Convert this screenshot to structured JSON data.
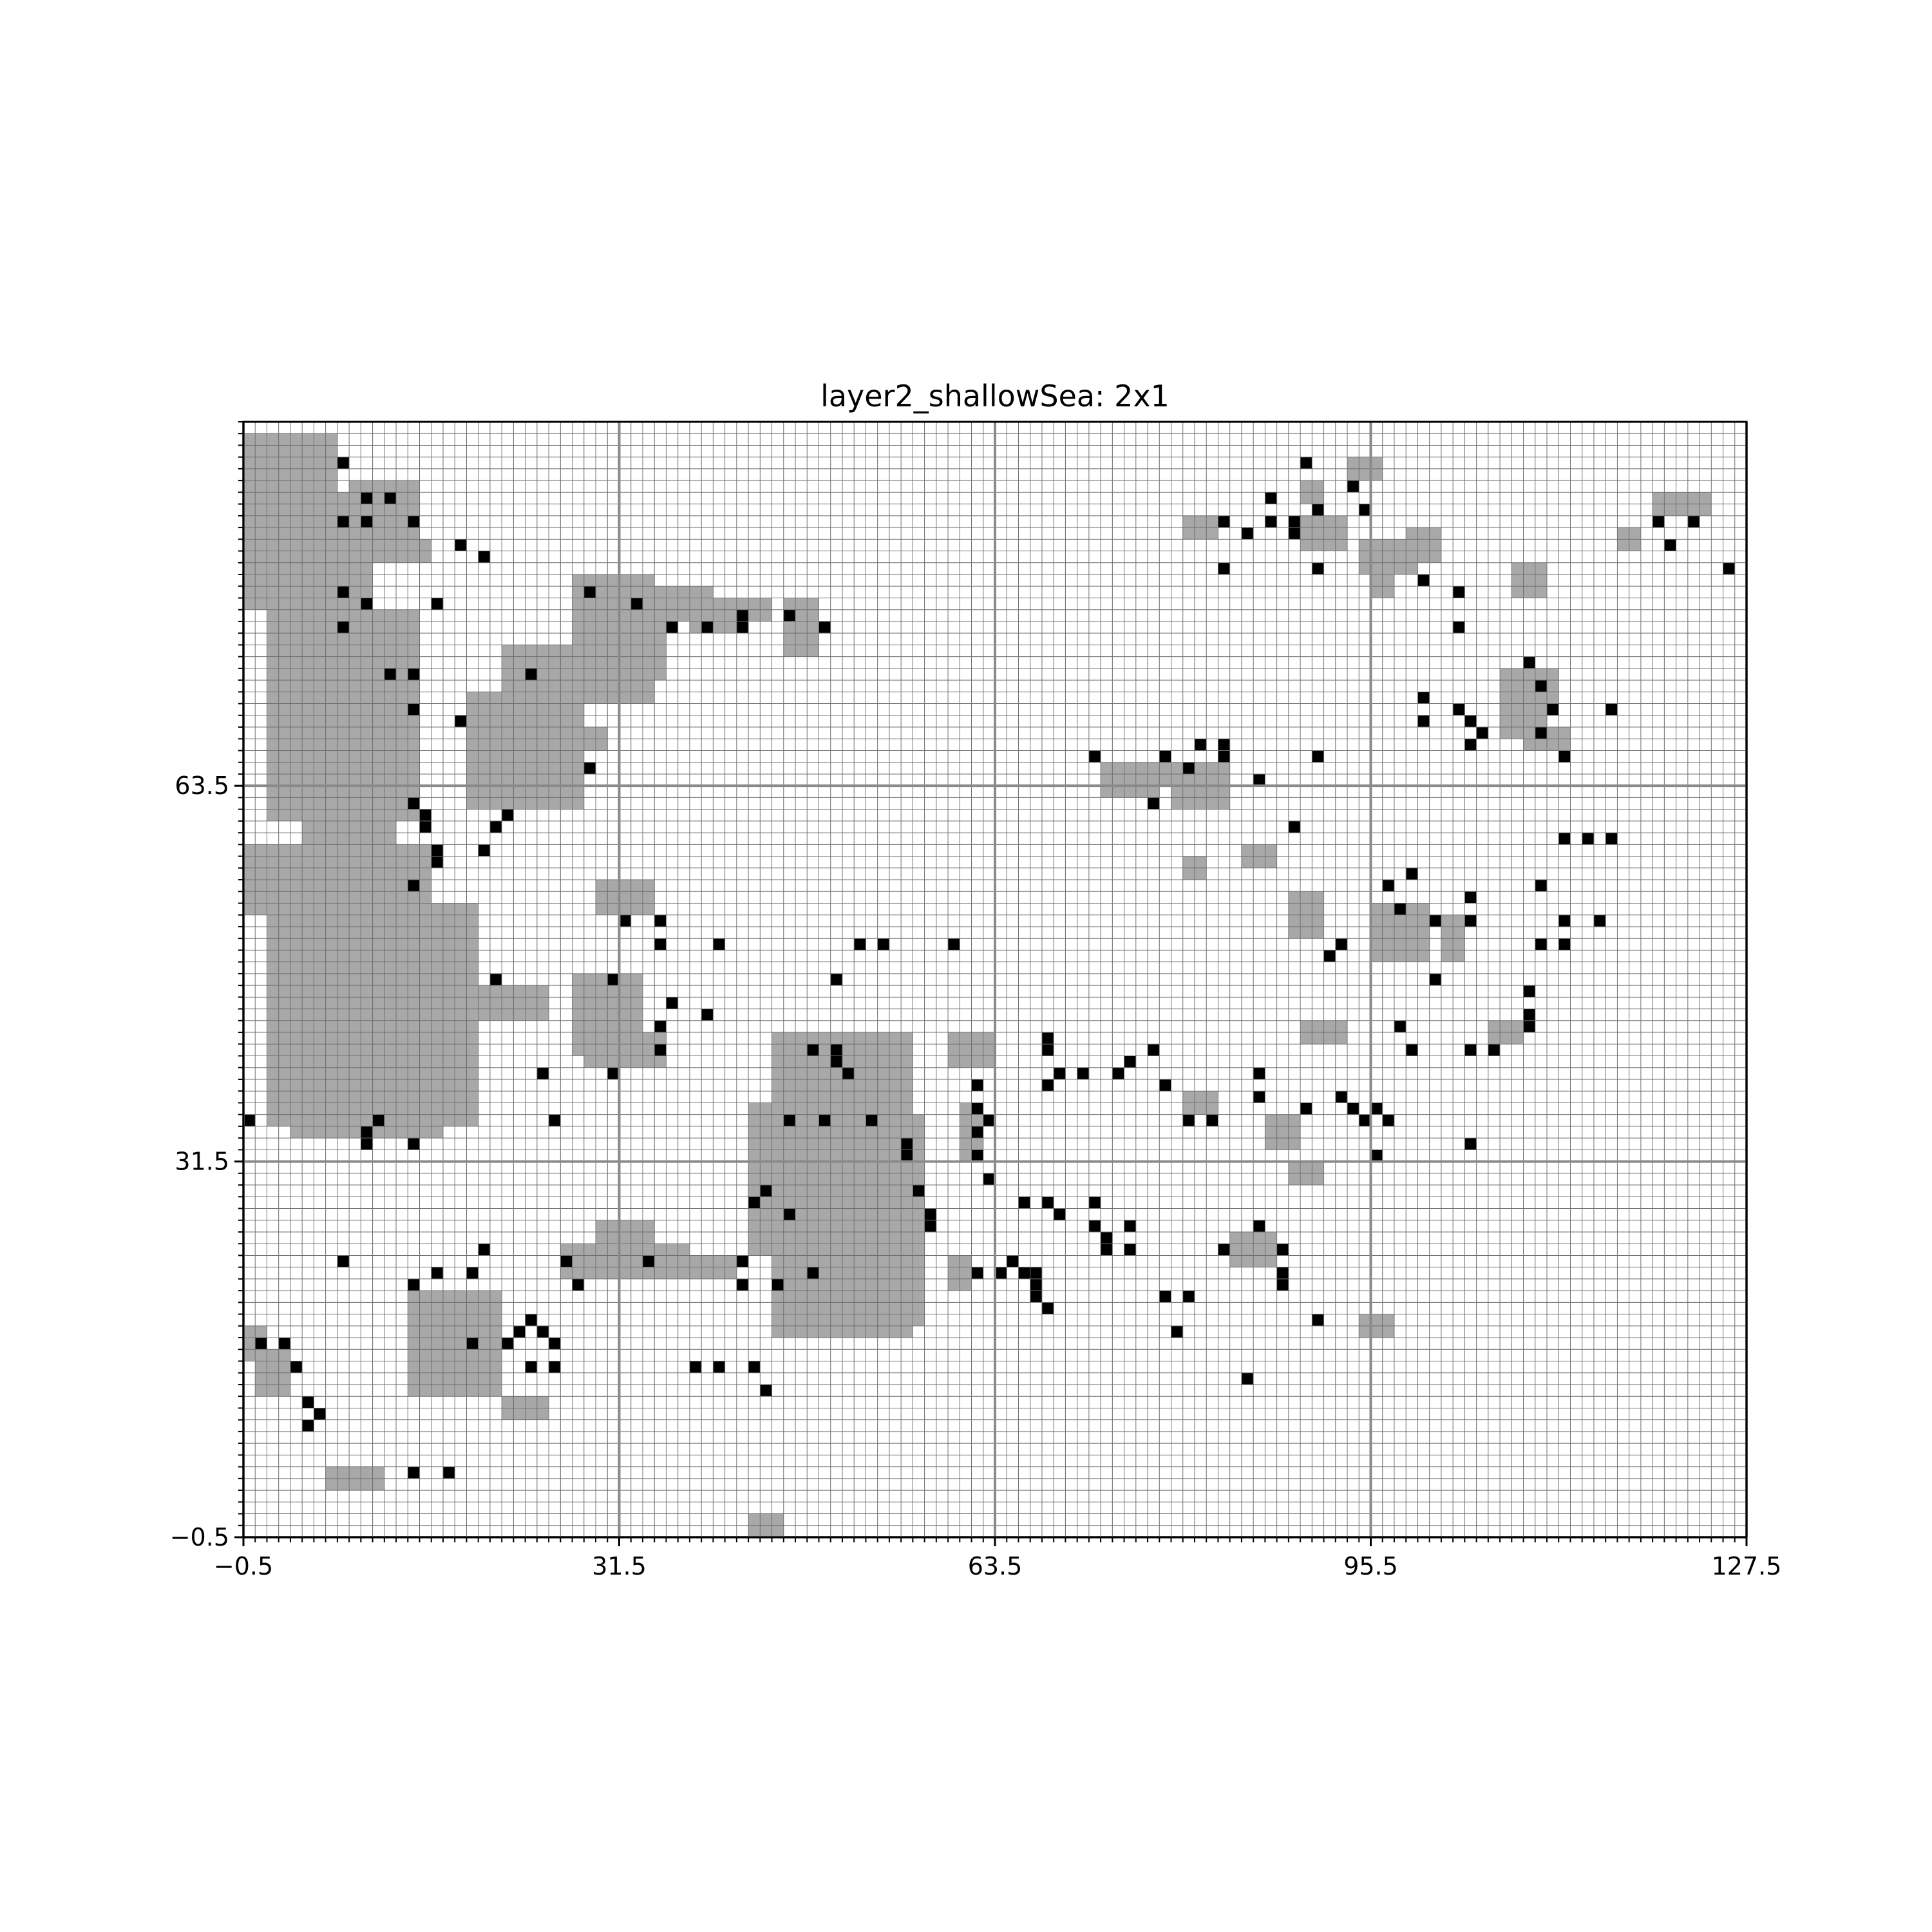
{
  "chart_data": {
    "type": "heatmap",
    "title": "layer2_shallowSea: 2x1",
    "xlabel": "",
    "ylabel": "",
    "xlim": [
      -0.5,
      127.5
    ],
    "ylim": [
      -0.5,
      94.5
    ],
    "x_ticks": [
      -0.5,
      31.5,
      63.5,
      95.5,
      127.5
    ],
    "x_tick_labels": [
      "−0.5",
      "31.5",
      "63.5",
      "95.5",
      "127.5"
    ],
    "y_ticks": [
      -0.5,
      31.5,
      63.5
    ],
    "y_tick_labels": [
      "−0.5",
      "31.5",
      "63.5"
    ],
    "fine_grid": true,
    "coarse_grid_every": 32,
    "cell_colors": {
      "empty": "#ffffff",
      "shallow": "#a8a8a8",
      "marker": "#000000"
    },
    "grid_colors": {
      "fine": "#6e6e6e",
      "coarse": "#8a8a8a"
    },
    "shallow_rects": [
      [
        0,
        79,
        7,
        93
      ],
      [
        8,
        74,
        10,
        88
      ],
      [
        9,
        84,
        14,
        89
      ],
      [
        11,
        83,
        15,
        84
      ],
      [
        2,
        61,
        14,
        78
      ],
      [
        5,
        58,
        12,
        62
      ],
      [
        0,
        53,
        15,
        58
      ],
      [
        2,
        35,
        19,
        53
      ],
      [
        13,
        35,
        16,
        50
      ],
      [
        16,
        44,
        19,
        50
      ],
      [
        16,
        44,
        25,
        46
      ],
      [
        4,
        34,
        16,
        35
      ],
      [
        22,
        68,
        28,
        75
      ],
      [
        19,
        62,
        28,
        71
      ],
      [
        28,
        71,
        34,
        81
      ],
      [
        28,
        73,
        35,
        78
      ],
      [
        31,
        80,
        33,
        81
      ],
      [
        35,
        78,
        39,
        80
      ],
      [
        35,
        78,
        44,
        79
      ],
      [
        38,
        77,
        42,
        78
      ],
      [
        46,
        75,
        48,
        79
      ],
      [
        30,
        53,
        34,
        55
      ],
      [
        28,
        41,
        33,
        47
      ],
      [
        29,
        40,
        35,
        42
      ],
      [
        45,
        17,
        56,
        42
      ],
      [
        53,
        18,
        57,
        35
      ],
      [
        43,
        24,
        46,
        36
      ],
      [
        45,
        21,
        48,
        27
      ],
      [
        36,
        22,
        41,
        23
      ],
      [
        27,
        22,
        37,
        24
      ],
      [
        30,
        23,
        34,
        26
      ],
      [
        14,
        12,
        21,
        20
      ],
      [
        15,
        17,
        16,
        19
      ],
      [
        18,
        13,
        20,
        15
      ],
      [
        1,
        12,
        3,
        15
      ],
      [
        0,
        15,
        1,
        17
      ],
      [
        22,
        10,
        25,
        11
      ],
      [
        7,
        4,
        11,
        5
      ],
      [
        43,
        -1,
        45,
        1
      ],
      [
        60,
        40,
        63,
        42
      ],
      [
        61,
        32,
        62,
        36
      ],
      [
        60,
        21,
        61,
        23
      ],
      [
        73,
        64,
        81,
        65
      ],
      [
        79,
        62,
        83,
        65
      ],
      [
        73,
        63,
        77,
        64
      ],
      [
        80,
        56,
        81,
        57
      ],
      [
        85,
        57,
        87,
        58
      ],
      [
        84,
        23,
        87,
        25
      ],
      [
        87,
        33,
        89,
        35
      ],
      [
        89,
        30,
        91,
        31
      ],
      [
        80,
        36,
        82,
        37
      ],
      [
        95,
        17,
        97,
        18
      ],
      [
        80,
        85,
        82,
        86
      ],
      [
        90,
        84,
        93,
        86
      ],
      [
        90,
        88,
        91,
        89
      ],
      [
        94,
        90,
        96,
        91
      ],
      [
        95,
        82,
        99,
        84
      ],
      [
        99,
        83,
        101,
        85
      ],
      [
        96,
        80,
        97,
        82
      ],
      [
        108,
        80,
        110,
        82
      ],
      [
        107,
        68,
        110,
        70
      ],
      [
        107,
        71,
        111,
        73
      ],
      [
        109,
        67,
        112,
        68
      ],
      [
        120,
        87,
        124,
        88
      ],
      [
        117,
        84,
        118,
        85
      ],
      [
        89,
        51,
        91,
        54
      ],
      [
        96,
        49,
        100,
        53
      ],
      [
        102,
        49,
        103,
        52
      ],
      [
        90,
        42,
        93,
        43
      ],
      [
        106,
        42,
        108,
        43
      ],
      [
        28,
        67,
        30,
        68
      ]
    ],
    "marker_cells": [
      [
        8,
        91
      ],
      [
        10,
        88
      ],
      [
        12,
        88
      ],
      [
        8,
        86
      ],
      [
        10,
        86
      ],
      [
        14,
        86
      ],
      [
        18,
        84
      ],
      [
        20,
        83
      ],
      [
        8,
        80
      ],
      [
        10,
        79
      ],
      [
        16,
        79
      ],
      [
        8,
        77
      ],
      [
        12,
        73
      ],
      [
        14,
        73
      ],
      [
        14,
        70
      ],
      [
        18,
        69
      ],
      [
        24,
        73
      ],
      [
        14,
        62
      ],
      [
        15,
        61
      ],
      [
        15,
        60
      ],
      [
        16,
        58
      ],
      [
        16,
        57
      ],
      [
        14,
        55
      ],
      [
        22,
        61
      ],
      [
        21,
        60
      ],
      [
        20,
        58
      ],
      [
        29,
        80
      ],
      [
        33,
        79
      ],
      [
        36,
        77
      ],
      [
        39,
        77
      ],
      [
        42,
        77
      ],
      [
        42,
        78
      ],
      [
        46,
        78
      ],
      [
        49,
        77
      ],
      [
        29,
        65
      ],
      [
        32,
        52
      ],
      [
        35,
        52
      ],
      [
        35,
        50
      ],
      [
        40,
        50
      ],
      [
        36,
        45
      ],
      [
        35,
        43
      ],
      [
        35,
        41
      ],
      [
        39,
        44
      ],
      [
        25,
        39
      ],
      [
        26,
        35
      ],
      [
        31,
        47
      ],
      [
        31,
        39
      ],
      [
        21,
        47
      ],
      [
        0,
        35
      ],
      [
        11,
        35
      ],
      [
        10,
        34
      ],
      [
        10,
        33
      ],
      [
        14,
        33
      ],
      [
        48,
        41
      ],
      [
        50,
        41
      ],
      [
        50,
        40
      ],
      [
        51,
        39
      ],
      [
        46,
        35
      ],
      [
        49,
        35
      ],
      [
        53,
        35
      ],
      [
        56,
        33
      ],
      [
        56,
        32
      ],
      [
        44,
        29
      ],
      [
        43,
        28
      ],
      [
        46,
        27
      ],
      [
        57,
        29
      ],
      [
        58,
        27
      ],
      [
        58,
        26
      ],
      [
        62,
        32
      ],
      [
        63,
        30
      ],
      [
        8,
        23
      ],
      [
        20,
        24
      ],
      [
        27,
        23
      ],
      [
        28,
        21
      ],
      [
        34,
        23
      ],
      [
        42,
        21
      ],
      [
        42,
        23
      ],
      [
        45,
        21
      ],
      [
        48,
        22
      ],
      [
        16,
        22
      ],
      [
        19,
        22
      ],
      [
        14,
        21
      ],
      [
        24,
        18
      ],
      [
        23,
        17
      ],
      [
        25,
        17
      ],
      [
        19,
        16
      ],
      [
        22,
        16
      ],
      [
        26,
        16
      ],
      [
        24,
        14
      ],
      [
        26,
        14
      ],
      [
        1,
        16
      ],
      [
        3,
        16
      ],
      [
        4,
        14
      ],
      [
        5,
        11
      ],
      [
        6,
        10
      ],
      [
        5,
        9
      ],
      [
        14,
        5
      ],
      [
        17,
        5
      ],
      [
        38,
        14
      ],
      [
        40,
        14
      ],
      [
        43,
        14
      ],
      [
        44,
        12
      ],
      [
        52,
        50
      ],
      [
        54,
        50
      ],
      [
        50,
        47
      ],
      [
        60,
        50
      ],
      [
        68,
        42
      ],
      [
        68,
        41
      ],
      [
        69,
        39
      ],
      [
        71,
        39
      ],
      [
        68,
        38
      ],
      [
        62,
        38
      ],
      [
        62,
        36
      ],
      [
        62,
        34
      ],
      [
        63,
        35
      ],
      [
        75,
        40
      ],
      [
        77,
        41
      ],
      [
        74,
        39
      ],
      [
        78,
        38
      ],
      [
        80,
        35
      ],
      [
        82,
        35
      ],
      [
        86,
        39
      ],
      [
        86,
        37
      ],
      [
        90,
        36
      ],
      [
        94,
        36
      ],
      [
        96,
        36
      ],
      [
        96,
        32
      ],
      [
        66,
        28
      ],
      [
        68,
        28
      ],
      [
        69,
        27
      ],
      [
        72,
        28
      ],
      [
        72,
        26
      ],
      [
        73,
        25
      ],
      [
        73,
        24
      ],
      [
        75,
        26
      ],
      [
        75,
        24
      ],
      [
        66,
        22
      ],
      [
        67,
        22
      ],
      [
        67,
        21
      ],
      [
        67,
        20
      ],
      [
        68,
        19
      ],
      [
        64,
        22
      ],
      [
        65,
        23
      ],
      [
        62,
        22
      ],
      [
        78,
        20
      ],
      [
        80,
        20
      ],
      [
        83,
        24
      ],
      [
        86,
        26
      ],
      [
        88,
        24
      ],
      [
        88,
        22
      ],
      [
        88,
        21
      ],
      [
        91,
        18
      ],
      [
        85,
        13
      ],
      [
        72,
        66
      ],
      [
        78,
        66
      ],
      [
        80,
        65
      ],
      [
        81,
        67
      ],
      [
        83,
        66
      ],
      [
        83,
        67
      ],
      [
        77,
        62
      ],
      [
        86,
        64
      ],
      [
        89,
        60
      ],
      [
        91,
        66
      ],
      [
        87,
        88
      ],
      [
        87,
        86
      ],
      [
        89,
        86
      ],
      [
        89,
        85
      ],
      [
        91,
        87
      ],
      [
        83,
        86
      ],
      [
        85,
        85
      ],
      [
        90,
        91
      ],
      [
        95,
        87
      ],
      [
        94,
        89
      ],
      [
        83,
        82
      ],
      [
        91,
        82
      ],
      [
        100,
        81
      ],
      [
        103,
        77
      ],
      [
        103,
        80
      ],
      [
        100,
        71
      ],
      [
        100,
        69
      ],
      [
        103,
        70
      ],
      [
        104,
        69
      ],
      [
        105,
        68
      ],
      [
        104,
        67
      ],
      [
        109,
        74
      ],
      [
        110,
        72
      ],
      [
        111,
        70
      ],
      [
        110,
        68
      ],
      [
        112,
        66
      ],
      [
        116,
        70
      ],
      [
        120,
        86
      ],
      [
        121,
        84
      ],
      [
        123,
        86
      ],
      [
        126,
        82
      ],
      [
        99,
        56
      ],
      [
        97,
        55
      ],
      [
        98,
        53
      ],
      [
        101,
        52
      ],
      [
        104,
        52
      ],
      [
        104,
        54
      ],
      [
        110,
        55
      ],
      [
        112,
        59
      ],
      [
        114,
        59
      ],
      [
        116,
        59
      ],
      [
        112,
        52
      ],
      [
        110,
        50
      ],
      [
        112,
        50
      ],
      [
        115,
        52
      ],
      [
        101,
        47
      ],
      [
        98,
        43
      ],
      [
        109,
        46
      ],
      [
        109,
        44
      ],
      [
        104,
        41
      ],
      [
        106,
        41
      ],
      [
        109,
        43
      ],
      [
        99,
        41
      ],
      [
        92,
        49
      ],
      [
        93,
        50
      ],
      [
        93,
        37
      ],
      [
        97,
        35
      ],
      [
        95,
        35
      ],
      [
        104,
        33
      ],
      [
        91,
        18
      ],
      [
        79,
        17
      ]
    ]
  }
}
